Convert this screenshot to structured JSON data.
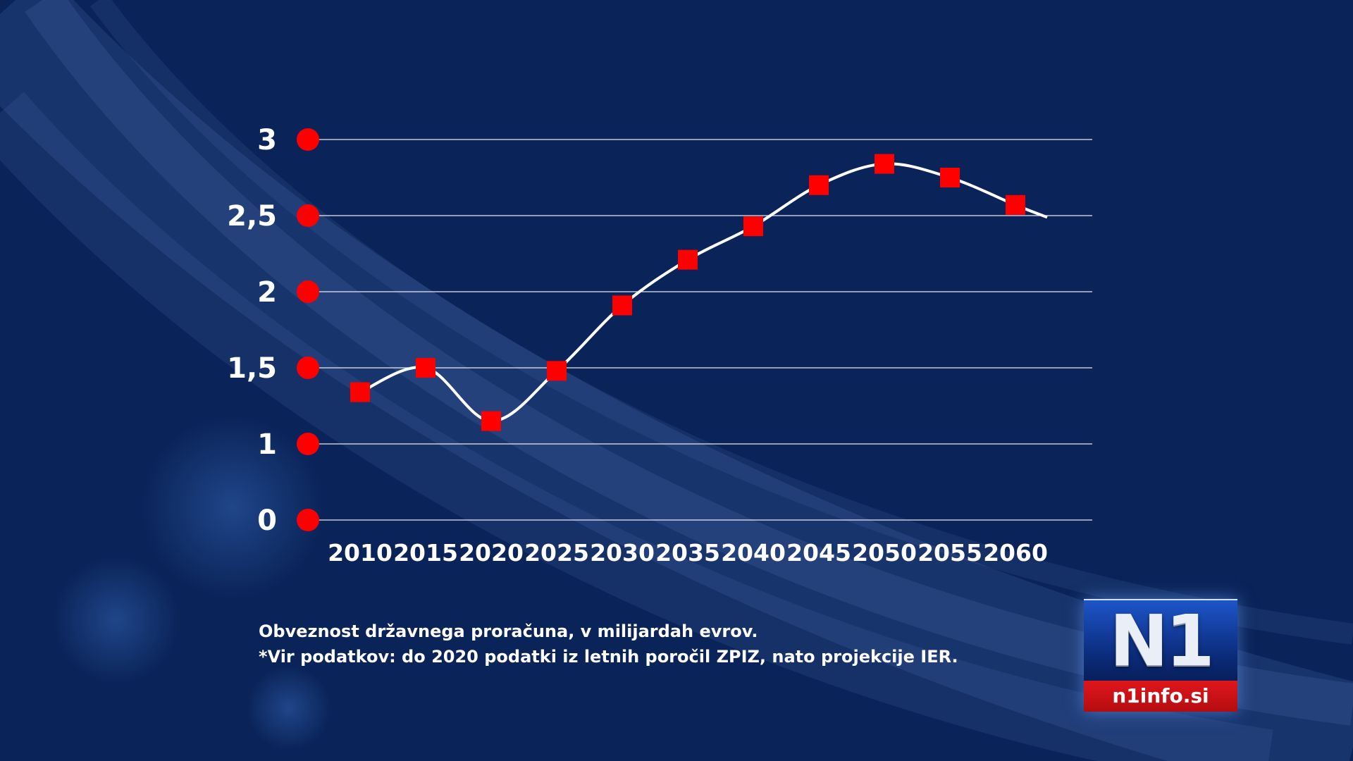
{
  "chart_data": {
    "type": "line",
    "title": "",
    "xlabel": "",
    "ylabel": "",
    "x": [
      "2010",
      "2015",
      "2020",
      "2025",
      "2030",
      "2035",
      "2040",
      "2045",
      "2050",
      "2055",
      "2060"
    ],
    "values": [
      1.34,
      1.5,
      1.15,
      1.48,
      1.91,
      2.21,
      2.43,
      2.7,
      2.84,
      2.75,
      2.57
    ],
    "y_ticks": [
      0,
      1,
      1.5,
      2,
      2.5,
      3
    ],
    "y_tick_labels": [
      "0",
      "1",
      "1,5",
      "2",
      "2,5",
      "3"
    ],
    "ylim": [
      0,
      3
    ],
    "y_axis_note": "axis is broken between 0 and 1 (equal spacing between all listed ticks)",
    "grid": true,
    "legend": "none",
    "colors": {
      "background": "#0a2459",
      "line": "#ffffff",
      "marker": "#ff0000",
      "gridline": "#ffffff",
      "tick_dot": "#ff0000"
    }
  },
  "footnote": {
    "line1": "Obveznost državnega proračuna, v milijardah evrov.",
    "line2": "*Vir podatkov: do 2020 podatki iz letnih poročil ZPIZ, nato projekcije IER."
  },
  "logo": {
    "mark": "N1",
    "url_text": "n1info.si"
  }
}
